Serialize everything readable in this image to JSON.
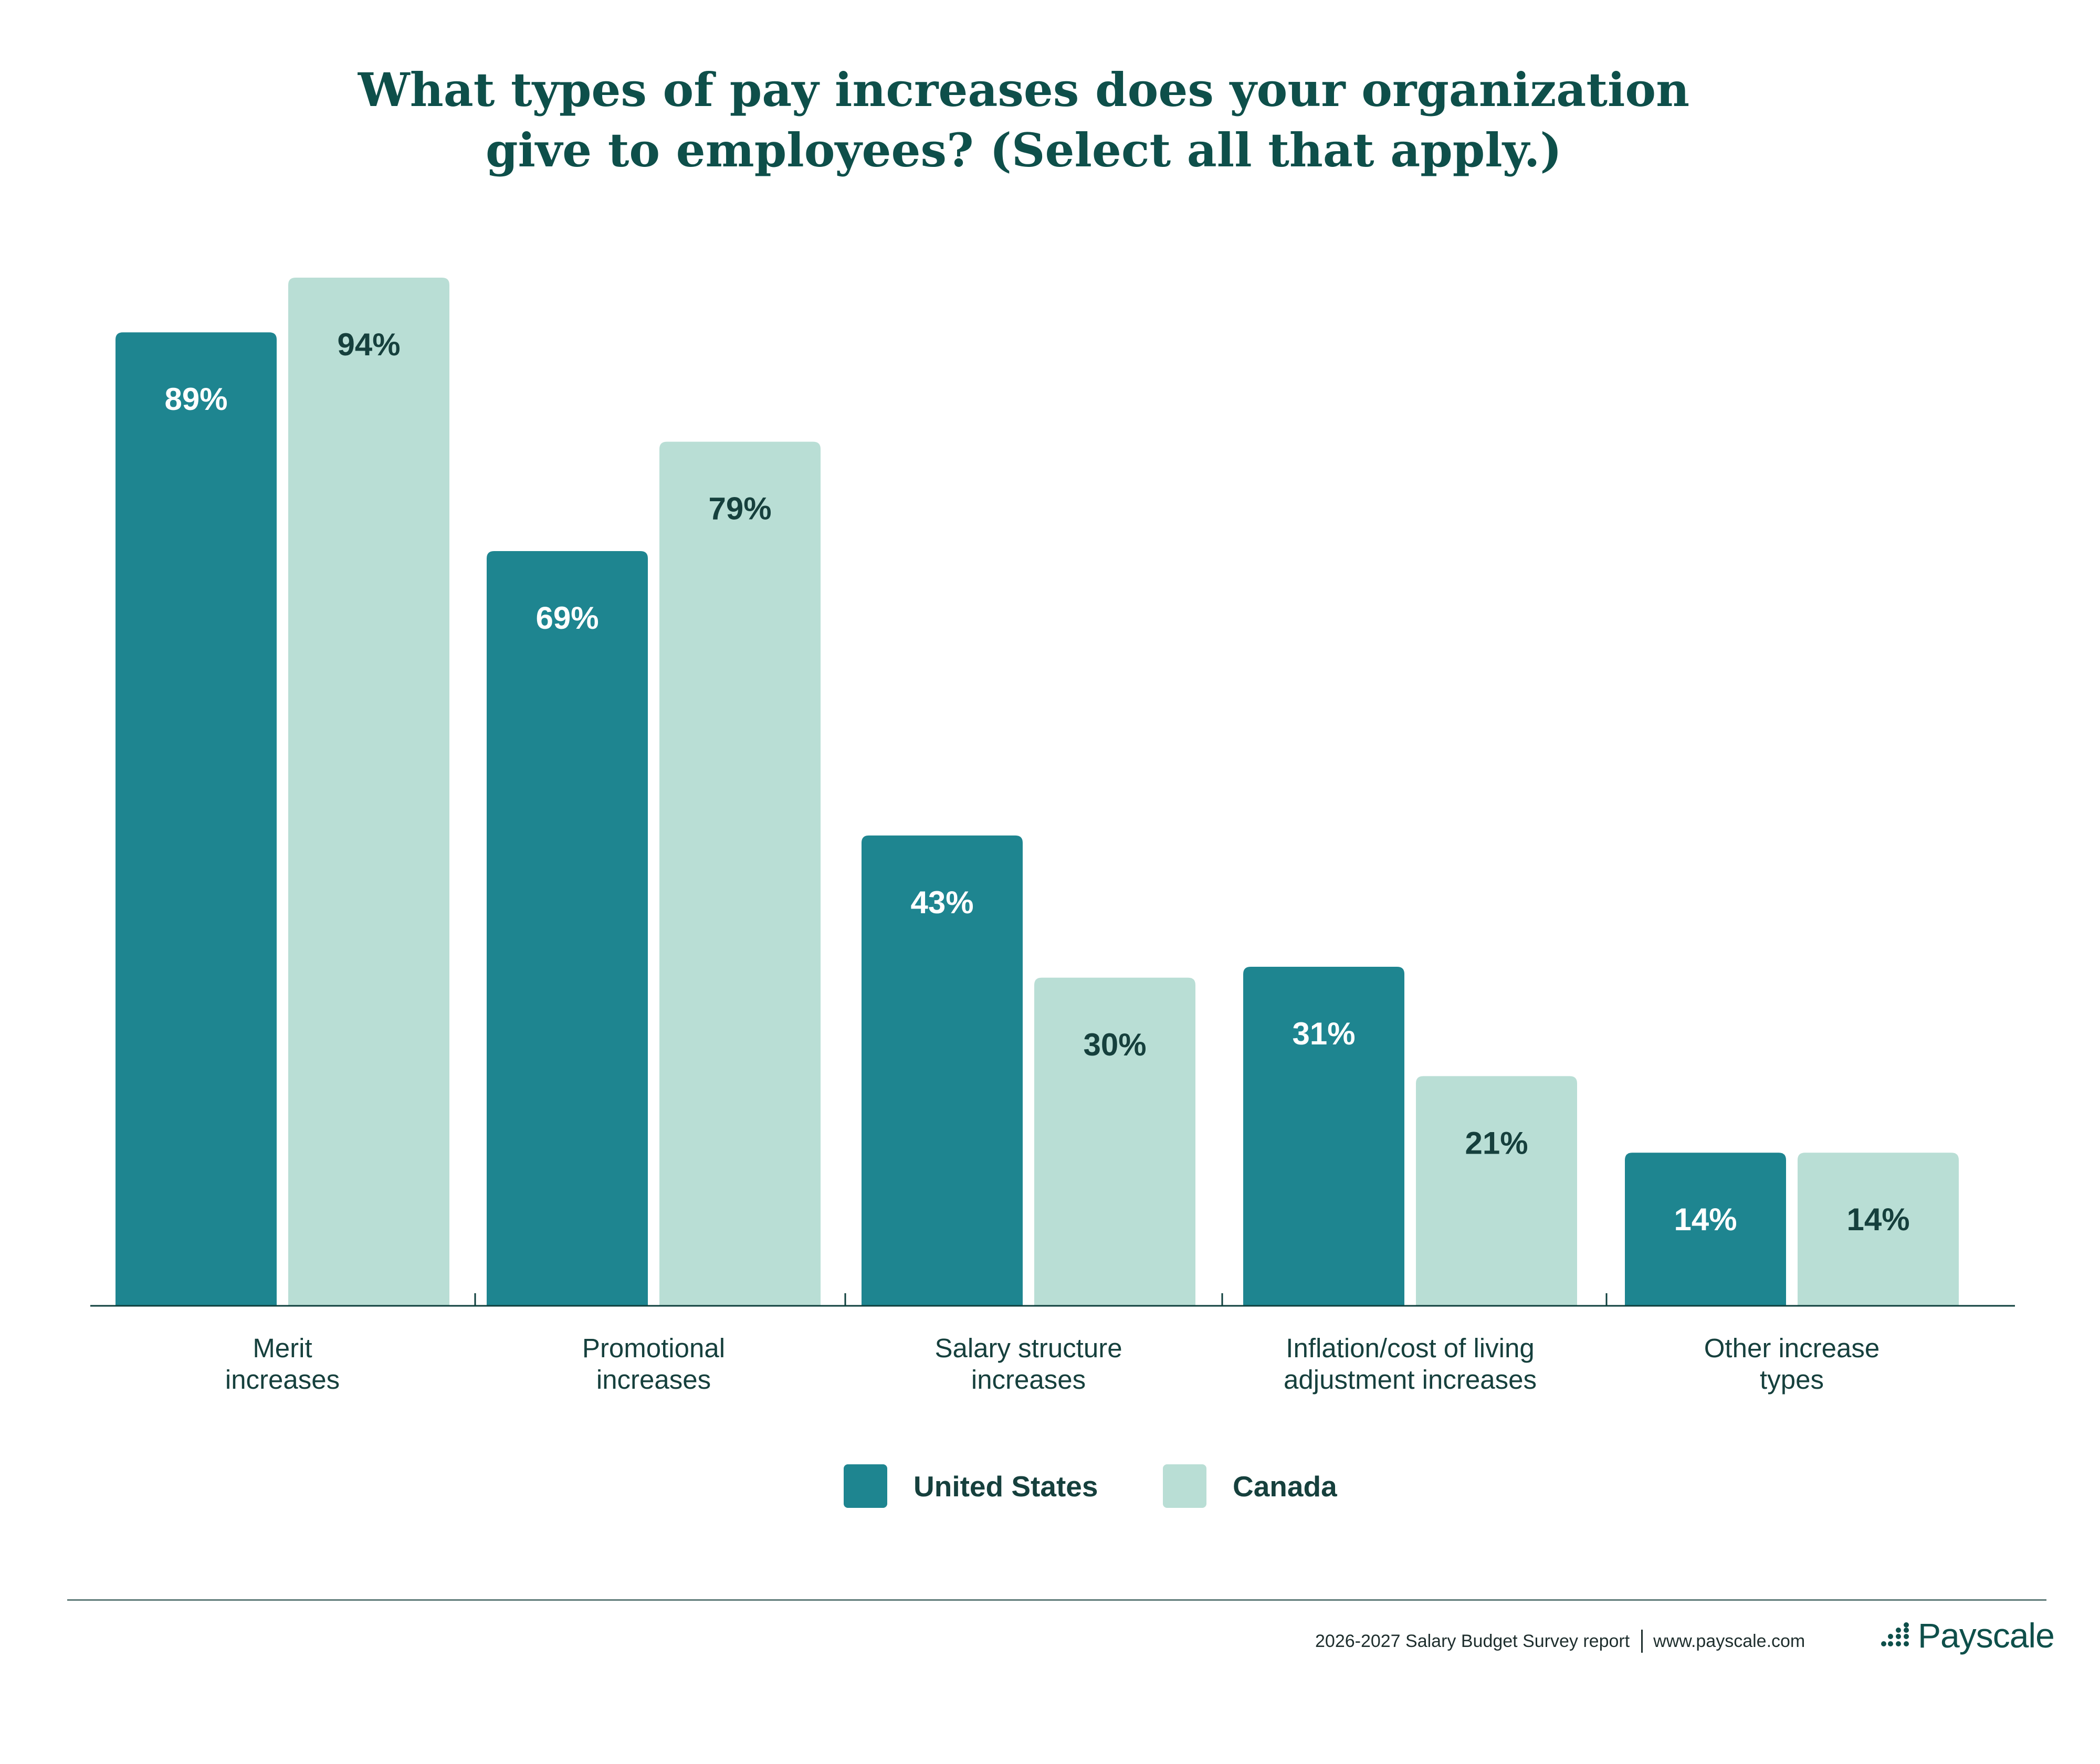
{
  "title": {
    "line1": "What types of pay increases does your organization",
    "line2": "give to employees? (Select all that apply.)"
  },
  "colors": {
    "united_states": "#1e8590",
    "canada": "#b9ded5",
    "title": "#0e4f4a",
    "label_dark": "#16403d",
    "label_light": "#ffffff"
  },
  "chart_data": {
    "type": "bar",
    "title": "What types of pay increases does your organization give to employees? (Select all that apply.)",
    "categories": [
      [
        "Merit",
        "increases"
      ],
      [
        "Promotional",
        "increases"
      ],
      [
        "Salary structure",
        "increases"
      ],
      [
        "Inflation/cost of living",
        "adjustment increases"
      ],
      [
        "Other increase",
        "types"
      ]
    ],
    "series": [
      {
        "name": "United States",
        "values": [
          89,
          69,
          43,
          31,
          14
        ],
        "labels": [
          "89%",
          "69%",
          "43%",
          "31%",
          "14%"
        ]
      },
      {
        "name": "Canada",
        "values": [
          94,
          79,
          30,
          21,
          14
        ],
        "labels": [
          "94%",
          "79%",
          "30%",
          "21%",
          "14%"
        ]
      }
    ],
    "ylim": [
      0,
      100
    ],
    "unit": "%",
    "grid": false,
    "legend_position": "bottom-center"
  },
  "legend": {
    "us_label": "United States",
    "canada_label": "Canada"
  },
  "footer": {
    "report": "2026-2027 Salary Budget Survey report",
    "website": "www.payscale.com",
    "brand": "Payscale"
  }
}
